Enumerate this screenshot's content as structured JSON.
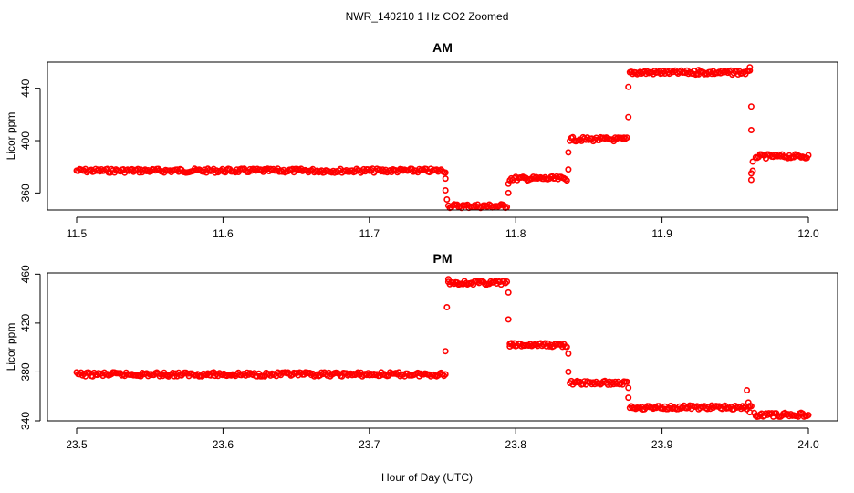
{
  "figure": {
    "title": "NWR_140210  1 Hz CO2 Zoomed",
    "xlabel": "Hour of Day (UTC)"
  },
  "chart_data": [
    {
      "type": "scatter",
      "title": "AM",
      "xlabel": "",
      "ylabel": "Licor ppm",
      "xlim": [
        11.5,
        12.0
      ],
      "ylim": [
        347,
        460
      ],
      "xticks": [
        "11.5",
        "11.6",
        "11.7",
        "11.8",
        "11.9",
        "12.0"
      ],
      "xtick_values": [
        11.5,
        11.6,
        11.7,
        11.8,
        11.9,
        12.0
      ],
      "yticks": [
        "360",
        "400",
        "440"
      ],
      "ytick_values": [
        360,
        400,
        440
      ],
      "marker": "open-circle",
      "series_color": "#ff0000",
      "grid": false,
      "series": [
        {
          "segments": [
            {
              "x0": 11.5,
              "x1": 11.752,
              "y": 377
            },
            {
              "x0": 11.754,
              "x1": 11.794,
              "y": 350
            },
            {
              "x0": 11.796,
              "x1": 11.835,
              "y": 371
            },
            {
              "x0": 11.837,
              "x1": 11.876,
              "y": 401
            },
            {
              "x0": 11.878,
              "x1": 11.96,
              "y": 452
            },
            {
              "x0": 11.964,
              "x1": 12.0,
              "y": 388
            }
          ],
          "transitions": [
            {
              "x": 11.752,
              "y": 371
            },
            {
              "x": 11.752,
              "y": 362
            },
            {
              "x": 11.753,
              "y": 355
            },
            {
              "x": 11.795,
              "x_alt": 11.795,
              "y": 360
            },
            {
              "x": 11.795,
              "y": 367
            },
            {
              "x": 11.836,
              "y": 378
            },
            {
              "x": 11.836,
              "y": 391
            },
            {
              "x": 11.877,
              "y": 418
            },
            {
              "x": 11.877,
              "y": 441
            },
            {
              "x": 11.925,
              "y": 454
            },
            {
              "x": 11.96,
              "y": 456
            },
            {
              "x": 11.961,
              "y": 426
            },
            {
              "x": 11.961,
              "y": 408
            },
            {
              "x": 11.962,
              "y": 384
            },
            {
              "x": 11.962,
              "y": 377
            },
            {
              "x": 11.961,
              "y": 375
            },
            {
              "x": 11.961,
              "y": 370
            }
          ]
        }
      ]
    },
    {
      "type": "scatter",
      "title": "PM",
      "xlabel": "Hour of Day (UTC)",
      "ylabel": "Licor ppm",
      "xlim": [
        23.5,
        24.0
      ],
      "ylim": [
        340,
        461
      ],
      "xticks": [
        "23.5",
        "23.6",
        "23.7",
        "23.8",
        "23.9",
        "24.0"
      ],
      "xtick_values": [
        23.5,
        23.6,
        23.7,
        23.8,
        23.9,
        24.0
      ],
      "yticks": [
        "340",
        "380",
        "420",
        "460"
      ],
      "ytick_values": [
        340,
        380,
        420,
        460
      ],
      "marker": "open-circle",
      "series_color": "#ff0000",
      "grid": false,
      "series": [
        {
          "segments": [
            {
              "x0": 23.5,
              "x1": 23.752,
              "y": 378
            },
            {
              "x0": 23.754,
              "x1": 23.794,
              "y": 453
            },
            {
              "x0": 23.796,
              "x1": 23.835,
              "y": 402
            },
            {
              "x0": 23.837,
              "x1": 23.876,
              "y": 371
            },
            {
              "x0": 23.878,
              "x1": 23.96,
              "y": 351
            },
            {
              "x0": 23.963,
              "x1": 24.0,
              "y": 345
            }
          ],
          "transitions": [
            {
              "x": 23.752,
              "y": 397
            },
            {
              "x": 23.753,
              "y": 433
            },
            {
              "x": 23.754,
              "y": 456
            },
            {
              "x": 23.795,
              "y": 445
            },
            {
              "x": 23.795,
              "y": 423
            },
            {
              "x": 23.796,
              "y": 403
            },
            {
              "x": 23.836,
              "y": 395
            },
            {
              "x": 23.836,
              "y": 380
            },
            {
              "x": 23.877,
              "y": 367
            },
            {
              "x": 23.877,
              "y": 359
            },
            {
              "x": 23.958,
              "y": 365
            },
            {
              "x": 23.959,
              "y": 355
            },
            {
              "x": 23.96,
              "y": 347
            },
            {
              "x": 23.961,
              "y": 352
            }
          ]
        }
      ]
    }
  ]
}
